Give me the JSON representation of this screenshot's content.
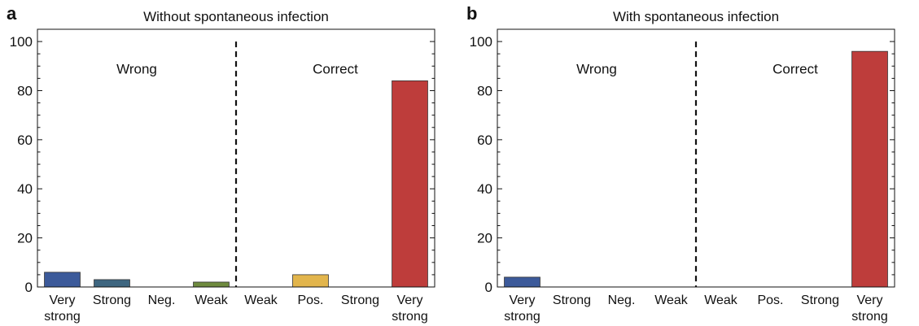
{
  "chart_data": [
    {
      "type": "bar",
      "panel_label": "a",
      "title": "Without spontaneous infection",
      "xlabel": "",
      "ylabel": "",
      "ylim": [
        0,
        105
      ],
      "yticks": [
        0,
        20,
        40,
        60,
        80,
        100
      ],
      "grid": false,
      "categories": [
        [
          "Very",
          "strong"
        ],
        [
          "Strong"
        ],
        [
          "Neg."
        ],
        [
          "Weak"
        ],
        [
          "Weak"
        ],
        [
          "Pos."
        ],
        [
          "Strong"
        ],
        [
          "Very",
          "strong"
        ]
      ],
      "values": [
        6,
        3,
        0,
        2,
        0,
        5,
        0,
        84
      ],
      "bar_colors": [
        "#3C5A9A",
        "#3E6680",
        "#5E7B55",
        "#6E8A3E",
        "#BFA24A",
        "#E2B54C",
        "#C56A4E",
        "#BE3D3B"
      ],
      "regions": [
        {
          "label": "Wrong"
        },
        {
          "label": "Correct"
        }
      ]
    },
    {
      "type": "bar",
      "panel_label": "b",
      "title": "With spontaneous infection",
      "xlabel": "",
      "ylabel": "",
      "ylim": [
        0,
        105
      ],
      "yticks": [
        0,
        20,
        40,
        60,
        80,
        100
      ],
      "grid": false,
      "categories": [
        [
          "Very",
          "strong"
        ],
        [
          "Strong"
        ],
        [
          "Neg."
        ],
        [
          "Weak"
        ],
        [
          "Weak"
        ],
        [
          "Pos."
        ],
        [
          "Strong"
        ],
        [
          "Very",
          "strong"
        ]
      ],
      "values": [
        4,
        0,
        0,
        0,
        0,
        0,
        0,
        96
      ],
      "bar_colors": [
        "#3C5A9A",
        "#3E6680",
        "#5E7B55",
        "#6E8A3E",
        "#BFA24A",
        "#E2B54C",
        "#C56A4E",
        "#BE3D3B"
      ],
      "regions": [
        {
          "label": "Wrong"
        },
        {
          "label": "Correct"
        }
      ]
    }
  ]
}
